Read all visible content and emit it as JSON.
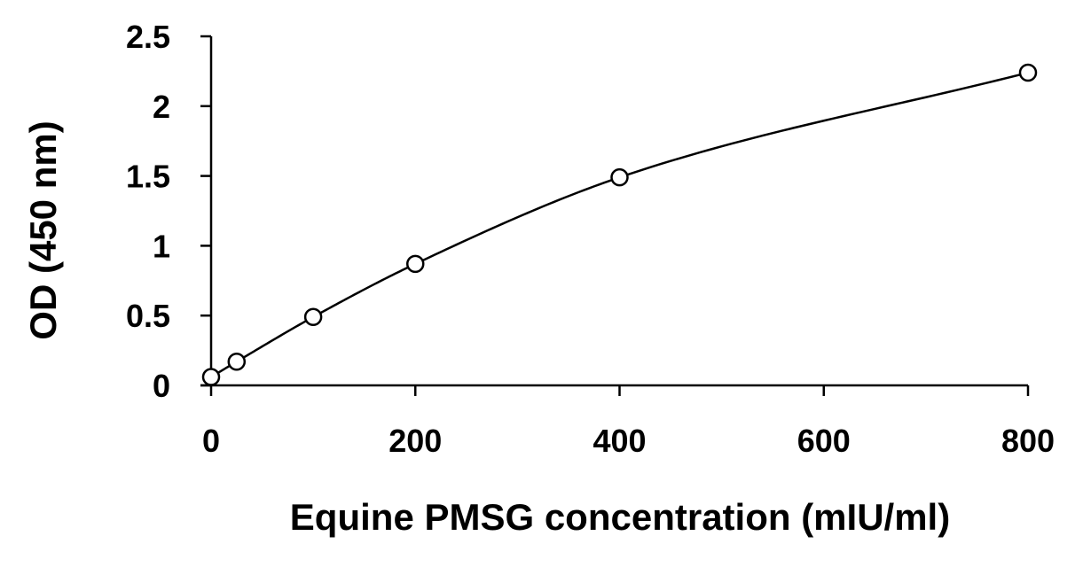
{
  "chart_data": {
    "type": "scatter",
    "title": "",
    "xlabel": "Equine PMSG concentration (mIU/ml)",
    "ylabel": "OD (450 nm)",
    "xlim": [
      0,
      800
    ],
    "ylim": [
      0,
      2.5
    ],
    "x_ticks": [
      0,
      200,
      400,
      600,
      800
    ],
    "y_ticks": [
      0,
      0.5,
      1,
      1.5,
      2,
      2.5
    ],
    "x_tick_labels": [
      "0",
      "200",
      "400",
      "600",
      "800"
    ],
    "y_tick_labels": [
      "0",
      "0.5",
      "1",
      "1.5",
      "2",
      "2.5"
    ],
    "grid": false,
    "series": [
      {
        "marker": "open-circle",
        "fit_line": "smooth-curve",
        "x": [
          0,
          25,
          100,
          200,
          400,
          800
        ],
        "y": [
          0.06,
          0.17,
          0.49,
          0.87,
          1.49,
          2.24
        ]
      }
    ]
  }
}
